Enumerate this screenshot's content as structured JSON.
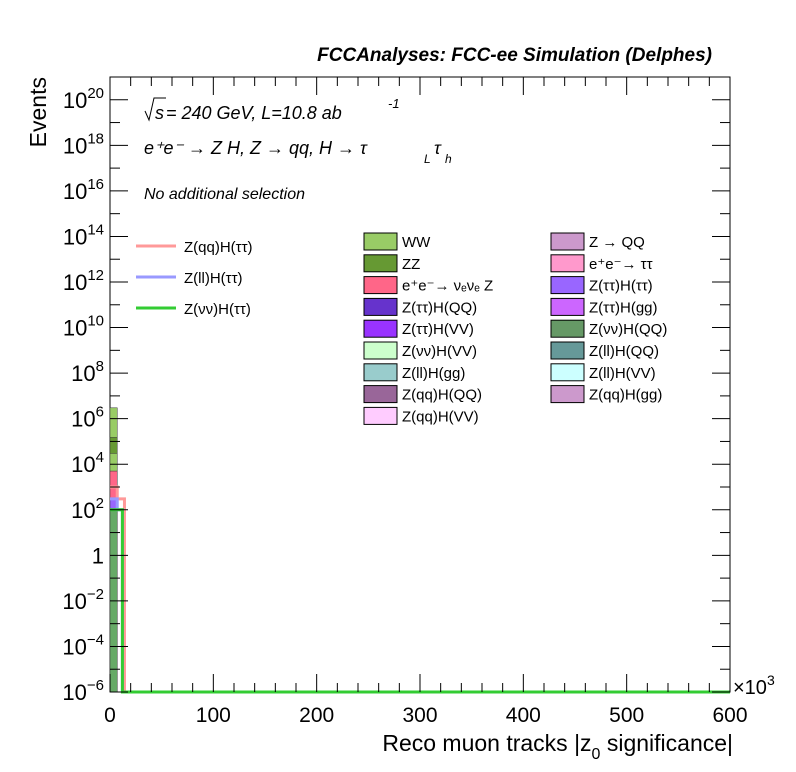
{
  "header": {
    "title": "FCCAnalyses: FCC-ee Simulation (Delphes)"
  },
  "annotations": {
    "energy_prefix": "s",
    "energy_text": " = 240 GeV, L=10.8 ab",
    "lumi_exp": "-1",
    "process": "e⁺e⁻ → Z H, Z → qq, H → τ",
    "tau_sub_1": "L",
    "tau_2": "τ",
    "tau_sub_2": "h",
    "selection": "No additional selection"
  },
  "chart_data": {
    "type": "bar",
    "stacked": true,
    "xlabel": "Reco muon tracks |z",
    "xlabel_sub": "0",
    "xlabel_tail": " significance|",
    "ylabel": "Events",
    "x_multiplier_base": "×10",
    "x_multiplier_exp": "3",
    "xlim": [
      0,
      600
    ],
    "ylim": [
      1e-06,
      1e+21
    ],
    "ylog": true,
    "x_ticks": [
      "0",
      "100",
      "200",
      "300",
      "400",
      "500",
      "600"
    ],
    "x_tick_values": [
      0,
      100,
      200,
      300,
      400,
      500,
      600
    ],
    "y_ticks": [
      {
        "value": 1e-06,
        "base": "10",
        "exp": "−6"
      },
      {
        "value": 0.0001,
        "base": "10",
        "exp": "−4"
      },
      {
        "value": 0.01,
        "base": "10",
        "exp": "−2"
      },
      {
        "value": 1,
        "base": "1",
        "exp": ""
      },
      {
        "value": 100.0,
        "base": "10",
        "exp": "2"
      },
      {
        "value": 10000.0,
        "base": "10",
        "exp": "4"
      },
      {
        "value": 1000000.0,
        "base": "10",
        "exp": "6"
      },
      {
        "value": 100000000.0,
        "base": "10",
        "exp": "8"
      },
      {
        "value": 10000000000.0,
        "base": "10",
        "exp": "10"
      },
      {
        "value": 1000000000000.0,
        "base": "10",
        "exp": "12"
      },
      {
        "value": 100000000000000.0,
        "base": "10",
        "exp": "14"
      },
      {
        "value": 1e+16,
        "base": "10",
        "exp": "16"
      },
      {
        "value": 1e+18,
        "base": "10",
        "exp": "18"
      },
      {
        "value": 1e+20,
        "base": "10",
        "exp": "20"
      }
    ],
    "stack_bins": [
      {
        "x0": 0,
        "x1": 7,
        "layers": [
          {
            "top": 3000000.0,
            "color": "#99cc66"
          },
          {
            "top": 150000.0,
            "color": "#669933"
          },
          {
            "top": 30000.0,
            "color": "#99cc66"
          },
          {
            "top": 5000.0,
            "color": "#ff6688"
          },
          {
            "top": 300.0,
            "color": "#9966ff"
          },
          {
            "top": 100.0,
            "color": "#66aa66"
          }
        ]
      }
    ],
    "signal_lines": [
      {
        "name": "Z(qq)H(ττ)",
        "color": "#ff9999",
        "x": [
          0,
          7,
          7,
          14,
          14
        ],
        "y": [
          1000.0,
          1000.0,
          300.0,
          300.0,
          1e-06
        ]
      },
      {
        "name": "Z(ll)H(ττ)",
        "color": "#9999ff",
        "x": [
          0,
          7,
          7,
          12,
          12
        ],
        "y": [
          300.0,
          300.0,
          100.0,
          100.0,
          1e-06
        ]
      },
      {
        "name": "Z(νν)H(ττ)",
        "color": "#33cc33",
        "x": [
          0,
          7,
          7,
          12,
          12,
          600
        ],
        "y": [
          100.0,
          100.0,
          100.0,
          100.0,
          1e-06,
          1e-06
        ]
      }
    ],
    "legend_signals": [
      {
        "label": "Z(qq)H(ττ)",
        "color": "#ff9999"
      },
      {
        "label": "Z(ll)H(ττ)",
        "color": "#9999ff"
      },
      {
        "label": "Z(νν)H(ττ)",
        "color": "#33cc33"
      }
    ],
    "legend_backgrounds": [
      {
        "label": "WW",
        "color": "#99cc66"
      },
      {
        "label": "ZZ",
        "color": "#669933"
      },
      {
        "label": "e⁺e⁻→ νₑνₑ Z",
        "color": "#ff6688"
      },
      {
        "label": "Z(ττ)H(QQ)",
        "color": "#6633cc"
      },
      {
        "label": "Z(ττ)H(VV)",
        "color": "#9933ff"
      },
      {
        "label": "Z(νν)H(VV)",
        "color": "#ccffcc"
      },
      {
        "label": "Z(ll)H(gg)",
        "color": "#99cccc"
      },
      {
        "label": "Z(qq)H(QQ)",
        "color": "#996699"
      },
      {
        "label": "Z(qq)H(VV)",
        "color": "#ffccff"
      },
      {
        "label": "Z → QQ",
        "color": "#cc99cc"
      },
      {
        "label": "e⁺e⁻→ ττ",
        "color": "#ff99cc"
      },
      {
        "label": "Z(ττ)H(ττ)",
        "color": "#9966ff"
      },
      {
        "label": "Z(ττ)H(gg)",
        "color": "#cc66ff"
      },
      {
        "label": "Z(νν)H(QQ)",
        "color": "#669966"
      },
      {
        "label": "Z(ll)H(QQ)",
        "color": "#669999"
      },
      {
        "label": "Z(ll)H(VV)",
        "color": "#ccffff"
      },
      {
        "label": "Z(qq)H(gg)",
        "color": "#cc99cc"
      }
    ]
  }
}
